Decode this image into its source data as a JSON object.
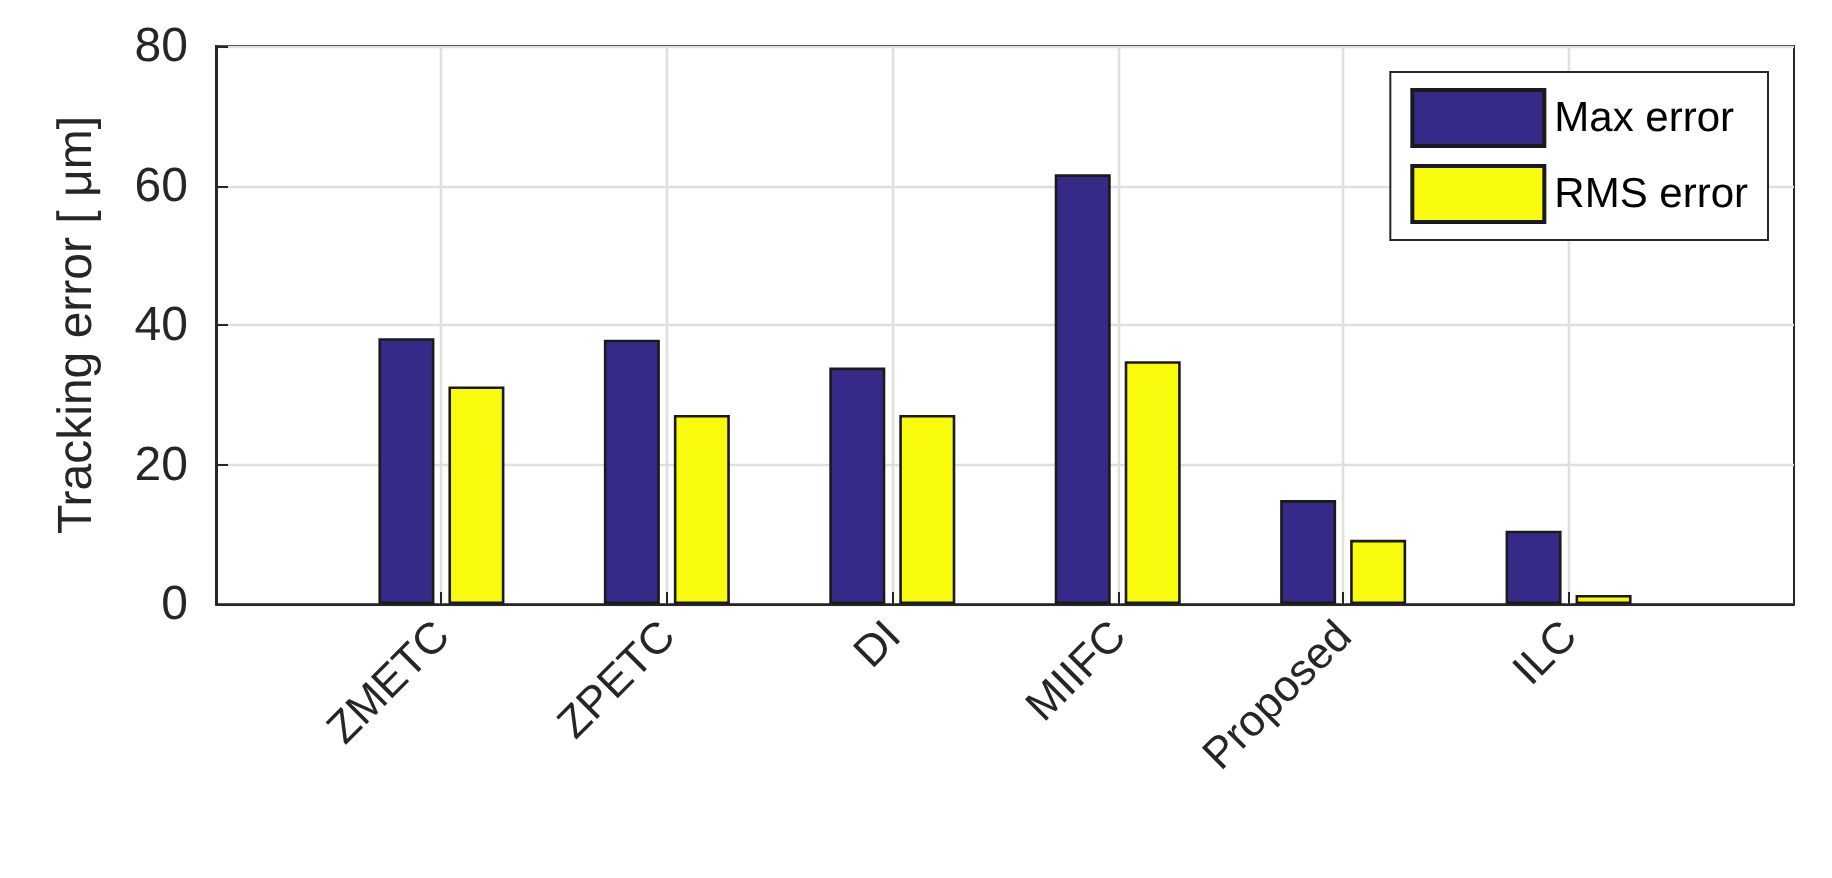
{
  "chart_data": {
    "type": "bar",
    "ylabel": "Tracking error [ μm]",
    "categories": [
      "ZMETC",
      "ZPETC",
      "DI",
      "MIIFC",
      "Proposed",
      "ILC"
    ],
    "series": [
      {
        "name": "Max error",
        "color": "#352a87",
        "values": [
          38.1,
          37.9,
          33.9,
          61.6,
          14.9,
          10.5
        ]
      },
      {
        "name": "RMS error",
        "color": "#f9fb0e",
        "values": [
          31.2,
          27.1,
          27.1,
          34.8,
          9.2,
          1.3
        ]
      }
    ],
    "ylim": [
      0,
      80
    ],
    "yticks": [
      0,
      20,
      40,
      60,
      80
    ],
    "grid": true,
    "legend": "top right"
  }
}
